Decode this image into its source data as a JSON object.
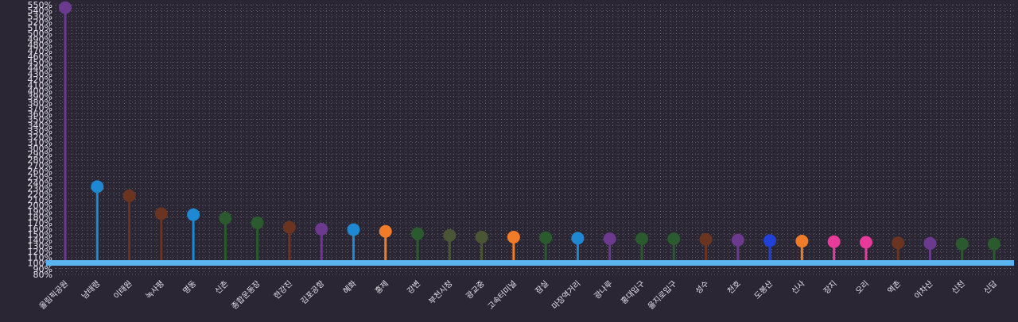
{
  "chart_data": {
    "type": "lollipop",
    "title": "",
    "xlabel": "",
    "ylabel": "",
    "ylim": [
      80,
      550
    ],
    "y_tick_step": 10,
    "y_tick_suffix": "%",
    "baseline": 100,
    "grid": true,
    "categories": [
      "올림픽공원",
      "남태령",
      "이태원",
      "녹사평",
      "명동",
      "신촌",
      "종합운동장",
      "한강진",
      "김포공항",
      "혜화",
      "홍제",
      "강변",
      "부천시청",
      "광교중",
      "고속터미널",
      "잠실",
      "마장역거리",
      "광나루",
      "홍대입구",
      "을지로입구",
      "성수",
      "천호",
      "도봉산",
      "신사",
      "장지",
      "오리",
      "역촌",
      "아차산",
      "신천",
      "신답"
    ],
    "values": [
      545,
      233,
      217,
      186,
      184,
      178,
      170,
      162,
      159,
      158,
      155,
      151,
      148,
      145,
      145,
      144,
      143,
      142,
      142,
      142,
      141,
      140,
      139,
      138,
      137,
      136,
      135,
      134,
      133,
      133
    ],
    "colors": [
      "#6b3a8f",
      "#1e88d2",
      "#6a3420",
      "#6a3420",
      "#1e88d2",
      "#2a5a2e",
      "#2a5a2e",
      "#6a3420",
      "#6b3a8f",
      "#1e88d2",
      "#f07c2a",
      "#2a5a2e",
      "#4a5535",
      "#4a5535",
      "#f07c2a",
      "#2a5a2e",
      "#1e88d2",
      "#6b3a8f",
      "#2a5a2e",
      "#2a5a2e",
      "#6a3420",
      "#6b3a8f",
      "#2040d8",
      "#f07c2a",
      "#e83a9a",
      "#e83a9a",
      "#6a3420",
      "#6b3a8f",
      "#2a5a2e",
      "#2a5a2e"
    ],
    "baseline_color": "#5ab4f0",
    "grid_color": "#c9c9d6"
  }
}
